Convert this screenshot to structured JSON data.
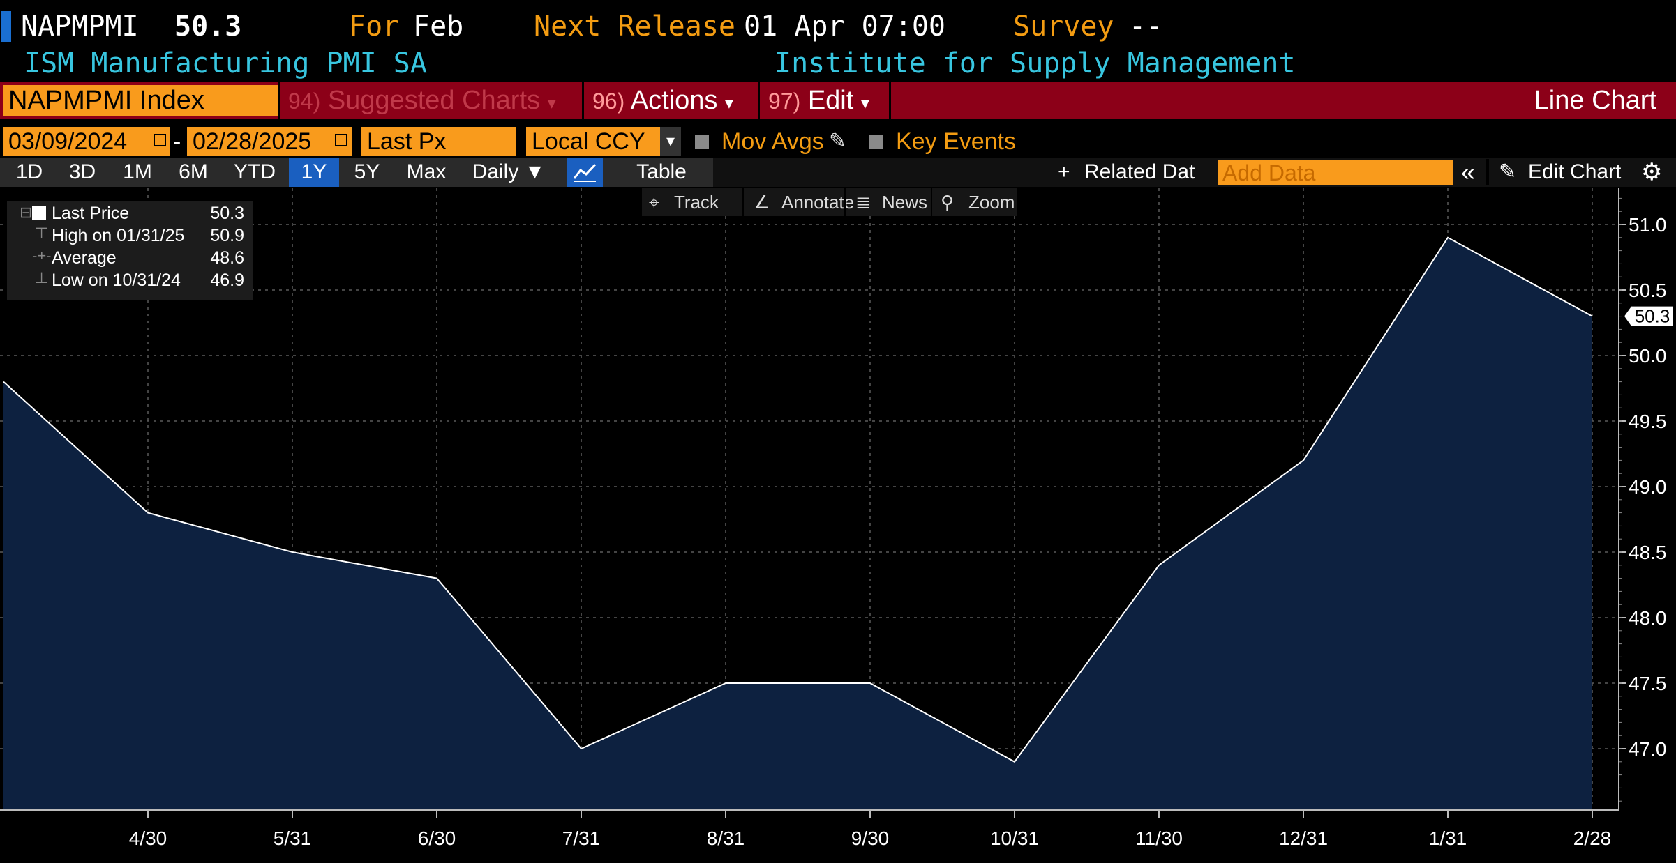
{
  "header": {
    "ticker": "NAPMPMI",
    "price": "50.3",
    "for_label": "For",
    "for_value": "Feb",
    "next_release_label": "Next Release",
    "next_release_value": "01 Apr 07:00",
    "survey_label": "Survey",
    "survey_value": "--",
    "name": "ISM Manufacturing PMI SA",
    "source": "Institute for Supply Management"
  },
  "command_bar": {
    "security_field": "NAPMPMI Index",
    "suggested_num": "94)",
    "suggested_label": "Suggested Charts",
    "actions_num": "96)",
    "actions_label": "Actions",
    "edit_num": "97)",
    "edit_label": "Edit",
    "chart_type": "Line Chart"
  },
  "options": {
    "start_date": "03/09/2024",
    "end_date": "02/28/2025",
    "separator": "-",
    "field": "Last Px",
    "currency": "Local CCY",
    "mov_avgs": "Mov Avgs",
    "key_events": "Key Events"
  },
  "periods": {
    "tabs": [
      "1D",
      "3D",
      "1M",
      "6M",
      "YTD",
      "1Y",
      "5Y",
      "Max"
    ],
    "active": "1Y",
    "frequency": "Daily ▼",
    "table_label": "Table",
    "related_data": "Related Dat",
    "add_data_placeholder": "Add Data",
    "edit_chart": "Edit Chart"
  },
  "chart_toolbar": {
    "track": "Track",
    "annotate": "Annotate",
    "news": "News",
    "zoom": "Zoom"
  },
  "legend": {
    "last_label": "Last Price",
    "last_value": "50.3",
    "high_label": "High on 01/31/25",
    "high_value": "50.9",
    "avg_label": "Average",
    "avg_value": "48.6",
    "low_label": "Low on 10/31/24",
    "low_value": "46.9"
  },
  "colors": {
    "accent_orange": "#f99b1c",
    "cmd_red": "#8c0018",
    "cyan_text": "#38c6e0",
    "area_fill": "#0d2140",
    "line": "#ffffff"
  },
  "chart_data": {
    "type": "area",
    "x": [
      "03/29/24",
      "4/30",
      "5/31",
      "6/30",
      "7/31",
      "8/31",
      "9/30",
      "10/31",
      "11/30",
      "12/31",
      "1/31",
      "2/28"
    ],
    "x_tick_labels": [
      "4/30",
      "5/31",
      "6/30",
      "7/31",
      "8/31",
      "9/30",
      "10/31",
      "11/30",
      "12/31",
      "1/31",
      "2/28"
    ],
    "values": [
      49.8,
      48.8,
      48.5,
      48.3,
      47.0,
      47.5,
      47.5,
      46.9,
      48.4,
      49.2,
      50.9,
      50.3
    ],
    "y_ticks": [
      "47.0",
      "47.5",
      "48.0",
      "48.5",
      "49.0",
      "49.5",
      "50.0",
      "50.5",
      "51.0"
    ],
    "ylim": [
      46.5,
      51.3
    ],
    "last_value_label": "50.3",
    "grid": true,
    "y_axis_side": "right"
  }
}
